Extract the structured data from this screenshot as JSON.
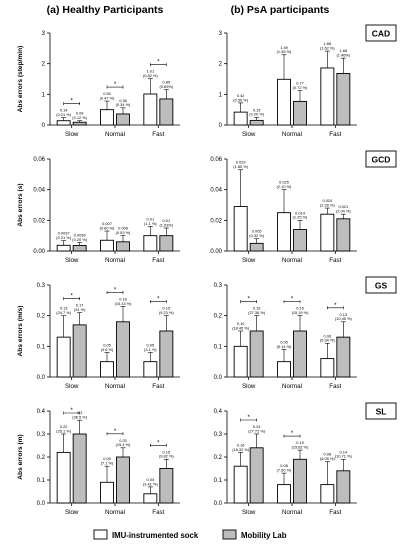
{
  "titles": {
    "left": "(a) Healthy Participants",
    "right": "(b) PsA participants"
  },
  "legend": {
    "items": [
      {
        "label": "IMU-instrumented sock",
        "color": "#ffffff"
      },
      {
        "label": "Mobility Lab",
        "color": "#bdbdbd"
      }
    ]
  },
  "colors": {
    "sock": "#ffffff",
    "lab": "#bdbdbd",
    "axis": "#000000"
  },
  "chart_data": [
    {
      "type": "bar",
      "panel": "a",
      "row_label": "",
      "ylabel": "Abs errors (step/min)",
      "ylim": [
        0,
        3
      ],
      "yticks": [
        0,
        1,
        2,
        3
      ],
      "yticklabels": [
        "0",
        "1",
        "2",
        "3"
      ],
      "categories": [
        "Slow",
        "Normal",
        "Fast"
      ],
      "series": [
        {
          "name": "IMU-instrumented sock",
          "values": [
            0.14,
            0.5,
            1.01
          ],
          "err": [
            0.1,
            0.28,
            0.5
          ],
          "labels": [
            "0.14\n(0.21 %)",
            "0.50\n(0.47 %)",
            "1.01\n(0.82 %)"
          ]
        },
        {
          "name": "Mobility Lab",
          "values": [
            0.09,
            0.36,
            0.85
          ],
          "err": [
            0.05,
            0.2,
            0.3
          ],
          "labels": [
            "0.09\n(0.12 %)",
            "0.36\n(0.34 %)",
            "0.85\n(0.69%)"
          ]
        }
      ],
      "significance": [
        0,
        1,
        2
      ]
    },
    {
      "type": "bar",
      "panel": "b",
      "row_label": "CAD",
      "ylabel": "",
      "ylim": [
        0,
        3
      ],
      "yticks": [
        0,
        1,
        2,
        3
      ],
      "yticklabels": [
        "0",
        "1",
        "2",
        "3"
      ],
      "categories": [
        "Slow",
        "Normal",
        "Fast"
      ],
      "series": [
        {
          "name": "IMU-instrumented sock",
          "values": [
            0.42,
            1.49,
            1.86
          ],
          "err": [
            0.3,
            0.8,
            0.55
          ],
          "labels": [
            "0.42\n(0.55 %)",
            "1.49\n(1.45 %)",
            "1.86\n(1.62 %)"
          ]
        },
        {
          "name": "Mobility Lab",
          "values": [
            0.15,
            0.77,
            1.68
          ],
          "err": [
            0.1,
            0.35,
            0.5
          ],
          "labels": [
            "0.15\n(0.20 %)",
            "0.77\n(0.72 %)",
            "1.68\n(1.46%)"
          ]
        }
      ],
      "significance": []
    },
    {
      "type": "bar",
      "panel": "a",
      "row_label": "",
      "ylabel": "Abs errors (s)",
      "ylim": [
        0,
        0.06
      ],
      "yticks": [
        0,
        0.02,
        0.04,
        0.06
      ],
      "yticklabels": [
        "0.00",
        "0.02",
        "0.04",
        "0.06"
      ],
      "categories": [
        "Slow",
        "Normal",
        "Fast"
      ],
      "series": [
        {
          "name": "IMU-instrumented sock",
          "values": [
            0.0037,
            0.007,
            0.01
          ],
          "err": [
            0.003,
            0.006,
            0.006
          ],
          "labels": [
            "0.0037\n(0.21 %)",
            "0.007\n(0.60 %)",
            "0.01\n(1.1 %)"
          ]
        },
        {
          "name": "Mobility Lab",
          "values": [
            0.0036,
            0.006,
            0.01
          ],
          "err": [
            0.002,
            0.004,
            0.005
          ],
          "labels": [
            "0.0036\n(0.20 %)",
            "0.006\n(0.53 %)",
            "0.01\n(1.03%)"
          ]
        }
      ],
      "significance": []
    },
    {
      "type": "bar",
      "panel": "b",
      "row_label": "GCD",
      "ylabel": "",
      "ylim": [
        0,
        0.06
      ],
      "yticks": [
        0,
        0.02,
        0.04,
        0.06
      ],
      "yticklabels": [
        "0.00",
        "0.02",
        "0.04",
        "0.06"
      ],
      "categories": [
        "Slow",
        "Normal",
        "Fast"
      ],
      "series": [
        {
          "name": "IMU-instrumented sock",
          "values": [
            0.029,
            0.025,
            0.024
          ],
          "err": [
            0.024,
            0.015,
            0.004
          ],
          "labels": [
            "0.029\n(1.85 %)",
            "0.025\n(2.10 %)",
            "0.024\n(2.28 %)"
          ]
        },
        {
          "name": "Mobility Lab",
          "values": [
            0.005,
            0.014,
            0.021
          ],
          "err": [
            0.003,
            0.006,
            0.003
          ],
          "labels": [
            "0.005\n(0.32 %)",
            "0.014\n(1.25 %)",
            "0.021\n(2.04 %)"
          ]
        }
      ],
      "significance": []
    },
    {
      "type": "bar",
      "panel": "a",
      "row_label": "",
      "ylabel": "Abs errors (m/s)",
      "ylim": [
        0,
        0.3
      ],
      "yticks": [
        0,
        0.1,
        0.2,
        0.3
      ],
      "yticklabels": [
        "0.0",
        "0.1",
        "0.2",
        "0.3"
      ],
      "categories": [
        "Slow",
        "Normal",
        "Fast"
      ],
      "series": [
        {
          "name": "IMU-instrumented sock",
          "values": [
            0.13,
            0.05,
            0.05
          ],
          "err": [
            0.07,
            0.03,
            0.03
          ],
          "labels": [
            "0.13\n(24.7 %)",
            "0.05\n(4.6 %)",
            "0.05\n(3.1 %)"
          ]
        },
        {
          "name": "Mobility Lab",
          "values": [
            0.17,
            0.18,
            0.15
          ],
          "err": [
            0.04,
            0.05,
            0.05
          ],
          "labels": [
            "0.17\n(31 %)",
            "0.18\n(15.13 %)",
            "0.15\n(9.23 %)"
          ]
        }
      ],
      "significance": [
        0,
        1,
        2
      ]
    },
    {
      "type": "bar",
      "panel": "b",
      "row_label": "GS",
      "ylabel": "",
      "ylim": [
        0,
        0.3
      ],
      "yticks": [
        0,
        0.1,
        0.2,
        0.3
      ],
      "yticklabels": [
        "0.0",
        "0.1",
        "0.2",
        "0.3"
      ],
      "categories": [
        "Slow",
        "Normal",
        "Fast"
      ],
      "series": [
        {
          "name": "IMU-instrumented sock",
          "values": [
            0.1,
            0.05,
            0.06
          ],
          "err": [
            0.05,
            0.04,
            0.05
          ],
          "labels": [
            "0.10\n(18.45 %)",
            "0.05\n(5.14 %)",
            "0.06\n(5.34 %)"
          ]
        },
        {
          "name": "Mobility Lab",
          "values": [
            0.15,
            0.15,
            0.13
          ],
          "err": [
            0.05,
            0.05,
            0.05
          ],
          "labels": [
            "0.15\n(27.36 %)",
            "0.15\n(15.19 %)",
            "0.13\n(10.45 %)"
          ]
        }
      ],
      "significance": [
        0,
        1,
        2
      ]
    },
    {
      "type": "bar",
      "panel": "a",
      "row_label": "",
      "ylabel": "Abs errors (m)",
      "ylim": [
        0,
        0.4
      ],
      "yticks": [
        0,
        0.1,
        0.2,
        0.3,
        0.4
      ],
      "yticklabels": [
        "0.0",
        "0.1",
        "0.2",
        "0.3",
        "0.4"
      ],
      "categories": [
        "Slow",
        "Normal",
        "Fast"
      ],
      "series": [
        {
          "name": "IMU-instrumented sock",
          "values": [
            0.22,
            0.09,
            0.04
          ],
          "err": [
            0.08,
            0.07,
            0.03
          ],
          "labels": [
            "0.22\n(25.1 %)",
            "0.09\n(7.1 %)",
            "0.04\n(3.41 %)"
          ]
        },
        {
          "name": "Mobility Lab",
          "values": [
            0.3,
            0.2,
            0.15
          ],
          "err": [
            0.06,
            0.04,
            0.04
          ],
          "labels": [
            "0.3\n(36.5 %)",
            "0.20\n(15.4 %)",
            "0.15\n(9.82 %)"
          ]
        }
      ],
      "significance": [
        0,
        1,
        2
      ]
    },
    {
      "type": "bar",
      "panel": "b",
      "row_label": "SL",
      "ylabel": "",
      "ylim": [
        0,
        0.4
      ],
      "yticks": [
        0,
        0.1,
        0.2,
        0.3,
        0.4
      ],
      "yticklabels": [
        "0.0",
        "0.1",
        "0.2",
        "0.3",
        "0.4"
      ],
      "categories": [
        "Slow",
        "Normal",
        "Fast"
      ],
      "series": [
        {
          "name": "IMU-instrumented sock",
          "values": [
            0.16,
            0.08,
            0.08
          ],
          "err": [
            0.06,
            0.05,
            0.1
          ],
          "labels": [
            "0.16\n(18.32 %)",
            "0.08\n(7.60 %)",
            "0.08\n(6.05 %)"
          ]
        },
        {
          "name": "Mobility Lab",
          "values": [
            0.24,
            0.19,
            0.14
          ],
          "err": [
            0.06,
            0.04,
            0.05
          ],
          "labels": [
            "0.24\n(27.72 %)",
            "0.19\n(15.82 %)",
            "0.14\n(10.71 %)"
          ]
        }
      ],
      "significance": [
        0,
        1
      ]
    }
  ]
}
